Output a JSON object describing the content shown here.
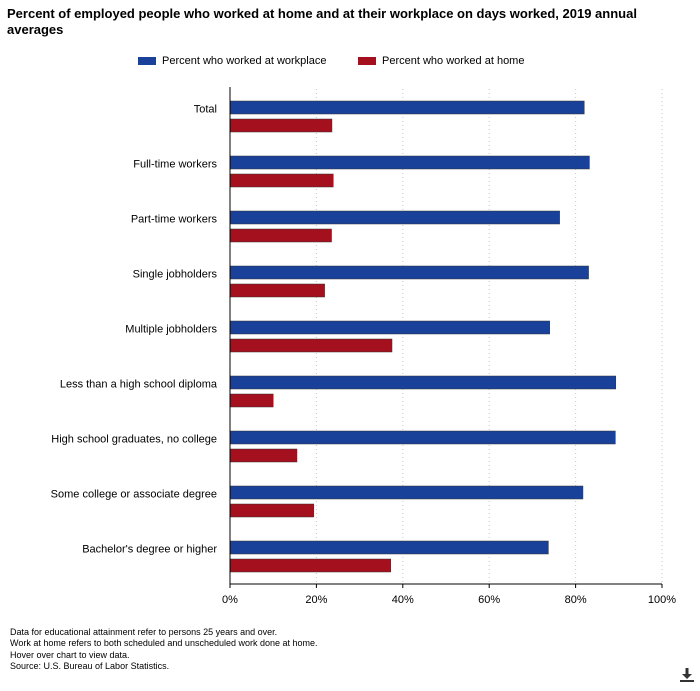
{
  "title": "Percent of employed people who worked at home and at their workplace on days worked, 2019 annual averages",
  "legend": {
    "workplace": "Percent who worked at workplace",
    "home": "Percent who worked at home"
  },
  "colors": {
    "workplace": "#1a4199",
    "home": "#a4101d",
    "grid": "#c8c8c8",
    "axis": "#000000"
  },
  "chart_data": {
    "type": "bar",
    "orientation": "horizontal",
    "title": "Percent of employed people who worked at home and at their workplace on days worked, 2019 annual averages",
    "categories": [
      "Total",
      "Full-time workers",
      "Part-time workers",
      "Single jobholders",
      "Multiple jobholders",
      "Less than a high school diploma",
      "High school graduates, no college",
      "Some college or associate degree",
      "Bachelor's degree or higher"
    ],
    "series": [
      {
        "name": "Percent who worked at workplace",
        "values": [
          82.0,
          83.2,
          76.3,
          83.0,
          74.0,
          89.3,
          89.2,
          81.7,
          73.7
        ]
      },
      {
        "name": "Percent who worked at home",
        "values": [
          23.6,
          23.9,
          23.5,
          21.9,
          37.5,
          10.0,
          15.5,
          19.4,
          37.2
        ]
      }
    ],
    "xlim": [
      0,
      100
    ],
    "xticks": [
      "0%",
      "20%",
      "40%",
      "60%",
      "80%",
      "100%"
    ],
    "grid": true,
    "legend_position": "top"
  },
  "footnotes": [
    "Data for educational attainment refer to persons 25 years and over.",
    "Work at home refers to both scheduled and unscheduled work done at home.",
    "Hover over chart to view data.",
    "Source: U.S. Bureau of Labor Statistics."
  ],
  "download_icon": "download-icon"
}
